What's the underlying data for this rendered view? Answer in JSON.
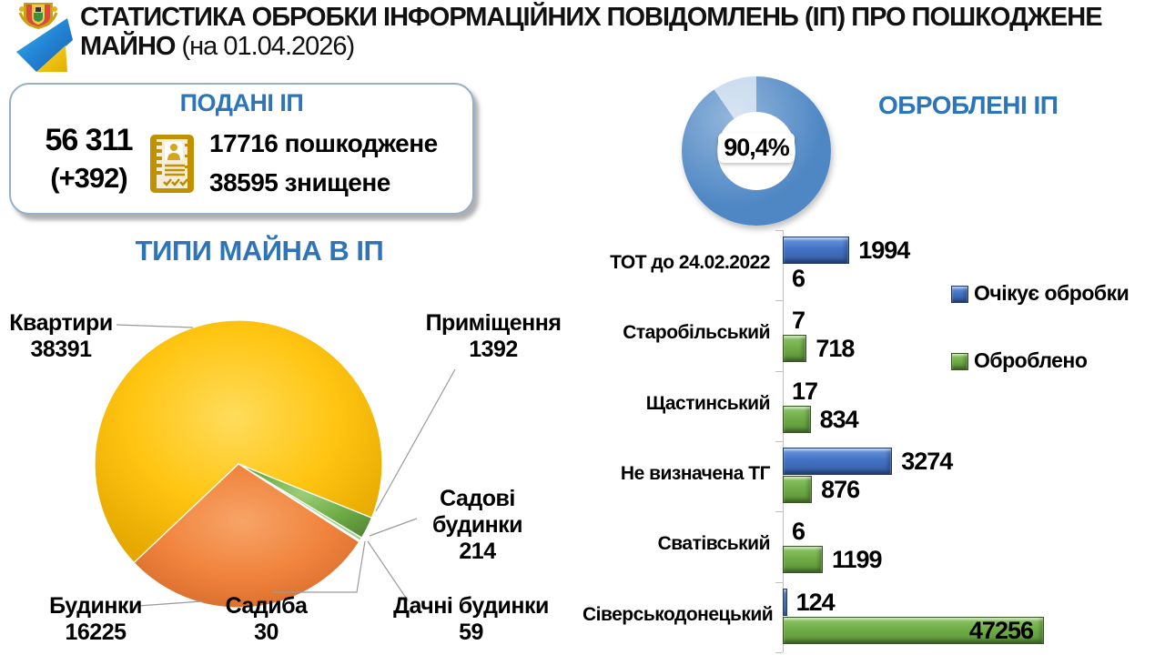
{
  "header": {
    "title_line1": "СТАТИСТИКА ОБРОБКИ ІНФОРМАЦІЙНИХ ПОВІДОМЛЕНЬ (ІП) ПРО ПОШКОДЖЕНЕ",
    "title_line2_word": "МАЙНО",
    "title_line2_date": " (на 01.04.2026)"
  },
  "submitted_box": {
    "title": "ПОДАНІ ІП",
    "total": "56 311",
    "delta": "(+392)",
    "damaged_line": "17716 пошкоджене",
    "destroyed_line": "38595 знищене",
    "document_icon": "document-with-person-icon"
  },
  "processed_section": {
    "title": "ОБРОБЛЕНІ ІП"
  },
  "pie_section": {
    "title": "ТИПИ МАЙНА В ІП"
  },
  "colors": {
    "heading_blue": "#2e74b8",
    "bar_blue": "#4472c4",
    "bar_green": "#70ad47",
    "donut_blue": "#4e87c4",
    "donut_light": "#bdd3eb",
    "pie_yellow": "#ffc512",
    "pie_orange": "#f0833c",
    "pie_green": "#6fae47",
    "axis_gray": "#bfbfbf"
  },
  "chart_data": [
    {
      "id": "processed-donut",
      "type": "pie",
      "subtype": "donut",
      "title": "ОБРОБЛЕНІ ІП",
      "center_label": "90,4%",
      "start_angle_deg": 0,
      "slices": [
        {
          "label": "Оброблено",
          "value": 90.4,
          "color": "#4e87c4"
        },
        {
          "label": "Очікує обробки",
          "value": 9.6,
          "color": "#bdd3eb"
        }
      ]
    },
    {
      "id": "property-types-pie",
      "type": "pie",
      "title": "ТИПИ МАЙНА В ІП",
      "start_angle_deg": 226.6,
      "slices": [
        {
          "label": "Квартири",
          "value": 38391,
          "color": "#ffc512"
        },
        {
          "label": "Приміщення",
          "value": 1392,
          "color": "#6fae47"
        },
        {
          "label": "Садові будинки",
          "value": 214,
          "color": "#a9d08e"
        },
        {
          "label": "Дачні будинки",
          "value": 59,
          "color": "#e2efda"
        },
        {
          "label": "Садиба",
          "value": 30,
          "color": "#fff2cc"
        },
        {
          "label": "Будинки",
          "value": 16225,
          "color": "#f0833c"
        }
      ]
    },
    {
      "id": "regions-bar",
      "type": "bar",
      "orientation": "horizontal",
      "categories": [
        "ТОТ до 24.02.2022",
        "Старобільський",
        "Щастинський",
        "Не визначена ТГ",
        "Сватівський",
        "Сіверськодонецький"
      ],
      "series": [
        {
          "name": "Очікує обробки",
          "color": "#4472c4",
          "values": [
            1994,
            7,
            17,
            3274,
            6,
            124
          ]
        },
        {
          "name": "Оброблено",
          "color": "#70ad47",
          "values": [
            6,
            718,
            834,
            876,
            1199,
            47256
          ]
        }
      ],
      "legend_position": "right-inside",
      "note": "longest bar clipped at plot edge"
    }
  ]
}
